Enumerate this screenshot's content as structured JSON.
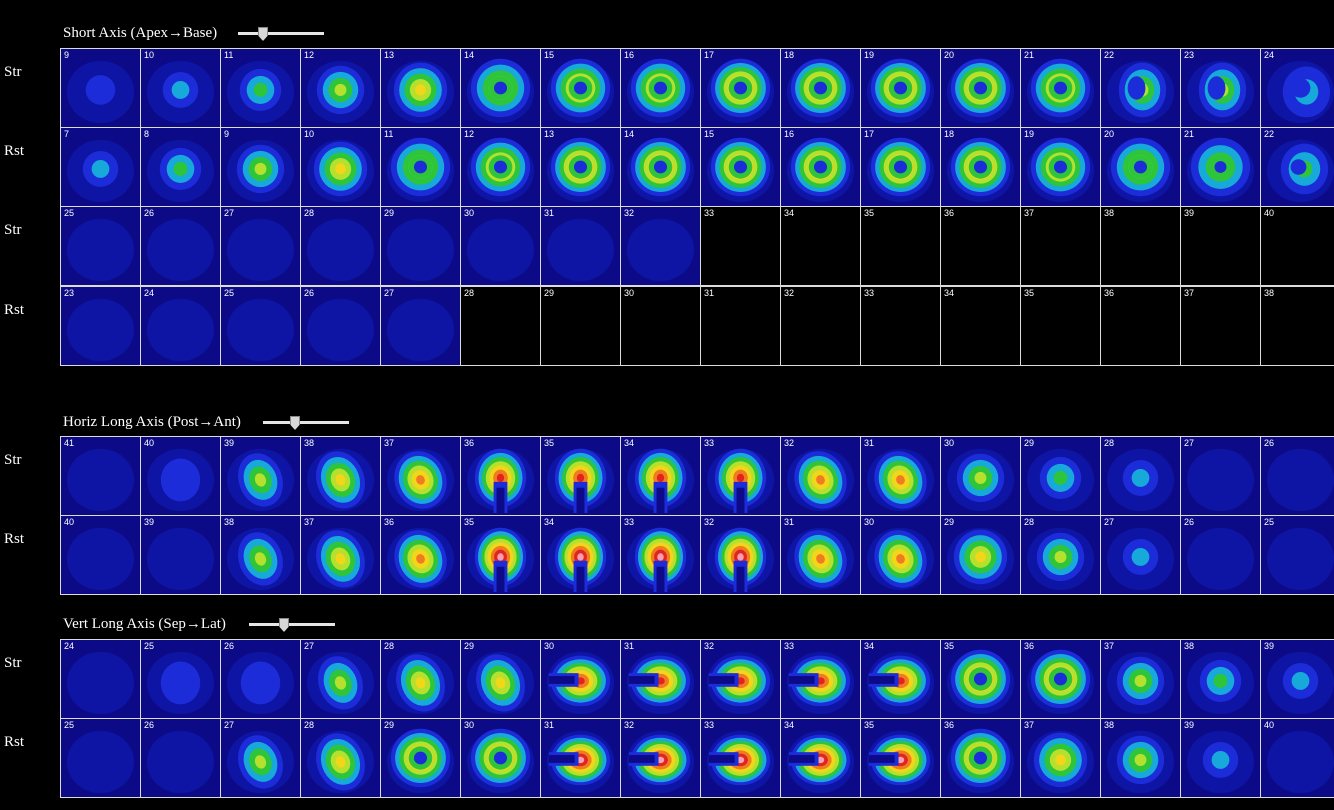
{
  "sections": [
    {
      "title": "Short Axis (Apex→Base)",
      "slider_position": 0.25,
      "rows": [
        {
          "label": "Str",
          "slices": [
            "9",
            "10",
            "11",
            "12",
            "13",
            "14",
            "15",
            "16",
            "17",
            "18",
            "19",
            "20",
            "21",
            "22",
            "23",
            "24"
          ],
          "images": [
            "c1",
            "c2",
            "c3",
            "c4",
            "c5",
            "r5",
            "r6",
            "r6",
            "r7",
            "r7",
            "r7",
            "r7",
            "r6",
            "g-c",
            "g-c",
            "b-c"
          ]
        },
        {
          "label": "Rst",
          "slices": [
            "7",
            "8",
            "9",
            "10",
            "11",
            "12",
            "13",
            "14",
            "15",
            "16",
            "17",
            "18",
            "19",
            "20",
            "21",
            "22"
          ],
          "images": [
            "c2",
            "c3",
            "c4",
            "c5",
            "r5",
            "r6",
            "r7",
            "r7",
            "r7",
            "r7",
            "r7",
            "r7",
            "r6",
            "r6g",
            "r6b",
            "bg-c"
          ]
        },
        {
          "label": "Str",
          "slices": [
            "25",
            "26",
            "27",
            "28",
            "29",
            "30",
            "31",
            "32",
            "33",
            "34",
            "35",
            "36",
            "37",
            "38",
            "39",
            "40"
          ],
          "images": [
            "bg",
            "bg",
            "bg",
            "bg",
            "bg",
            "bg",
            "bg",
            "bg",
            "none",
            "none",
            "none",
            "none",
            "none",
            "none",
            "none",
            "none"
          ]
        },
        {
          "label": "Rst",
          "slices": [
            "23",
            "24",
            "25",
            "26",
            "27",
            "28",
            "29",
            "30",
            "31",
            "32",
            "33",
            "34",
            "35",
            "36",
            "37",
            "38"
          ],
          "images": [
            "bg",
            "bg",
            "bg",
            "bg",
            "bg",
            "none",
            "none",
            "none",
            "none",
            "none",
            "none",
            "none",
            "none",
            "none",
            "none",
            "none"
          ]
        }
      ]
    },
    {
      "title": "Horiz Long Axis (Post→Ant)",
      "slider_position": 0.35,
      "rows": [
        {
          "label": "Str",
          "slices": [
            "41",
            "40",
            "39",
            "38",
            "37",
            "36",
            "35",
            "34",
            "33",
            "32",
            "31",
            "30",
            "29",
            "28",
            "27",
            "26"
          ],
          "images": [
            "bg",
            "b1",
            "g-e",
            "y-e",
            "o-e",
            "h6",
            "h6",
            "h6",
            "h6",
            "o-e",
            "o-e",
            "c4",
            "c3",
            "c2",
            "bg",
            "bg"
          ]
        },
        {
          "label": "Rst",
          "slices": [
            "40",
            "39",
            "38",
            "37",
            "36",
            "35",
            "34",
            "33",
            "32",
            "31",
            "30",
            "29",
            "28",
            "27",
            "26",
            "25"
          ],
          "images": [
            "bg",
            "bg",
            "g-e",
            "y-e",
            "o-e",
            "h7",
            "h7",
            "h7",
            "h7",
            "o-e",
            "o-e",
            "c5",
            "c4",
            "c2",
            "bg",
            "bg"
          ]
        }
      ]
    },
    {
      "title": "Vert Long Axis (Sep→Lat)",
      "slider_position": 0.38,
      "rows": [
        {
          "label": "Str",
          "slices": [
            "24",
            "25",
            "26",
            "27",
            "28",
            "29",
            "30",
            "31",
            "32",
            "33",
            "34",
            "35",
            "36",
            "37",
            "38",
            "39"
          ],
          "images": [
            "bg",
            "b1",
            "b1",
            "g-e",
            "y-e",
            "y-e",
            "u6",
            "u6",
            "u6",
            "u6",
            "u6",
            "r7",
            "r7",
            "c4",
            "c3",
            "c2"
          ]
        },
        {
          "label": "Rst",
          "slices": [
            "25",
            "26",
            "27",
            "28",
            "29",
            "30",
            "31",
            "32",
            "33",
            "34",
            "35",
            "36",
            "37",
            "38",
            "39",
            "40"
          ],
          "images": [
            "bg",
            "bg",
            "g-e",
            "y-e",
            "r7",
            "r7",
            "u7",
            "u7",
            "u7",
            "u7",
            "u7",
            "r7",
            "c5",
            "c4",
            "c2",
            "bg"
          ]
        }
      ]
    }
  ],
  "colors": {
    "background": "#000000",
    "noise_blue": "#0c0a86",
    "blue": "#1c2cd8",
    "cyan": "#17a9d9",
    "green": "#2ec53a",
    "yellow_green": "#b6e02e",
    "yellow": "#f2d61a",
    "orange": "#f07b20",
    "red": "#e0241e",
    "pink": "#f4a0b4"
  }
}
